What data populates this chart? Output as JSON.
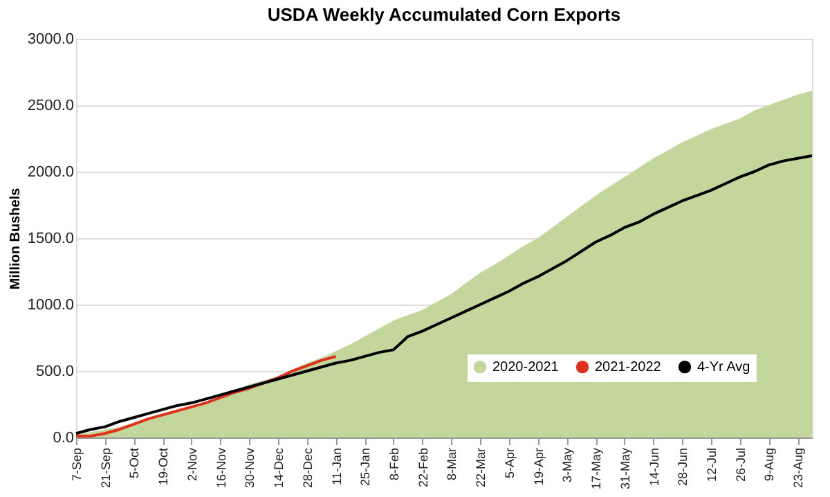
{
  "chart_data": {
    "type": "line",
    "title": "USDA Weekly Accumulated Corn Exports",
    "ylabel": "Million Bushels",
    "categories": [
      "7-Sep",
      null,
      "21-Sep",
      null,
      "5-Oct",
      null,
      "19-Oct",
      null,
      "2-Nov",
      null,
      "16-Nov",
      null,
      "30-Nov",
      null,
      "14-Dec",
      null,
      "28-Dec",
      null,
      "11-Jan",
      null,
      "25-Jan",
      null,
      "8-Feb",
      null,
      "22-Feb",
      null,
      "8-Mar",
      null,
      "22-Mar",
      null,
      "5-Apr",
      null,
      "19-Apr",
      null,
      "3-May",
      null,
      "17-May",
      null,
      "31-May",
      null,
      "14-Jun",
      null,
      "28-Jun",
      null,
      "12-Jul",
      null,
      "26-Jul",
      null,
      "9-Aug",
      null,
      "23-Aug",
      null
    ],
    "series": [
      {
        "name": "2020-2021",
        "type": "area",
        "color": "#c3d69b",
        "values": [
          20,
          40,
          60,
          80,
          110,
          140,
          170,
          200,
          230,
          270,
          310,
          350,
          400,
          430,
          460,
          510,
          560,
          600,
          650,
          700,
          760,
          820,
          880,
          920,
          960,
          1020,
          1080,
          1160,
          1240,
          1300,
          1370,
          1440,
          1500,
          1580,
          1660,
          1740,
          1820,
          1890,
          1960,
          2030,
          2100,
          2160,
          2220,
          2270,
          2320,
          2360,
          2400,
          2460,
          2500,
          2540,
          2580,
          2610
        ]
      },
      {
        "name": "2021-2022",
        "color": "#e0301e",
        "values": [
          10,
          10,
          30,
          60,
          100,
          140,
          170,
          200,
          230,
          260,
          300,
          340,
          370,
          410,
          450,
          500,
          540,
          580,
          610,
          null,
          null,
          null,
          null,
          null,
          null,
          null,
          null,
          null,
          null,
          null,
          null,
          null,
          null,
          null,
          null,
          null,
          null,
          null,
          null,
          null,
          null,
          null,
          null,
          null,
          null,
          null,
          null,
          null,
          null,
          null,
          null,
          null
        ]
      },
      {
        "name": "4-Yr Avg",
        "color": "#000000",
        "values": [
          30,
          60,
          80,
          120,
          150,
          180,
          210,
          240,
          260,
          290,
          320,
          350,
          380,
          410,
          440,
          470,
          500,
          530,
          560,
          580,
          610,
          640,
          660,
          760,
          800,
          850,
          900,
          950,
          1000,
          1050,
          1100,
          1160,
          1210,
          1270,
          1330,
          1400,
          1470,
          1520,
          1580,
          1620,
          1680,
          1730,
          1780,
          1820,
          1860,
          1910,
          1960,
          2000,
          2050,
          2080,
          2100,
          2120
        ]
      }
    ],
    "ylim": [
      0,
      3000
    ],
    "yticks": [
      {
        "value": 0,
        "label": "0.0"
      },
      {
        "value": 500,
        "label": "500.0"
      },
      {
        "value": 1000,
        "label": "1000.0"
      },
      {
        "value": 1500,
        "label": "1500.0"
      },
      {
        "value": 2000,
        "label": "2000.0"
      },
      {
        "value": 2500,
        "label": "2500.0"
      },
      {
        "value": 3000,
        "label": "3000.0"
      }
    ],
    "grid": "y",
    "legend": "bottom right"
  }
}
